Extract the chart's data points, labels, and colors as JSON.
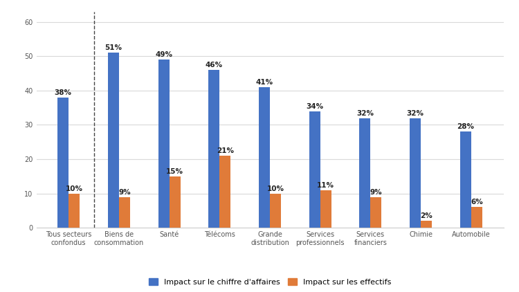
{
  "categories": [
    "Tous secteurs\nconfondus",
    "Biens de\nconsommation",
    "Santé",
    "Télécoms",
    "Grande\ndistribution",
    "Services\nprofessionnels",
    "Services\nfinanciers",
    "Chimie",
    "Automobile"
  ],
  "blue_values": [
    38,
    51,
    49,
    46,
    41,
    34,
    32,
    32,
    28
  ],
  "orange_values": [
    10,
    9,
    15,
    21,
    10,
    11,
    9,
    2,
    6
  ],
  "blue_color": "#4472C4",
  "orange_color": "#E07B39",
  "ylim": [
    0,
    63
  ],
  "yticks": [
    0,
    10,
    20,
    30,
    40,
    50,
    60
  ],
  "legend_blue": "Impact sur le chiffre d'affaires",
  "legend_orange": "Impact sur les effectifs",
  "bar_width": 0.22,
  "background_color": "#ffffff",
  "grid_color": "#d9d9d9",
  "label_fontsize": 7.5,
  "tick_fontsize": 7,
  "legend_fontsize": 8
}
